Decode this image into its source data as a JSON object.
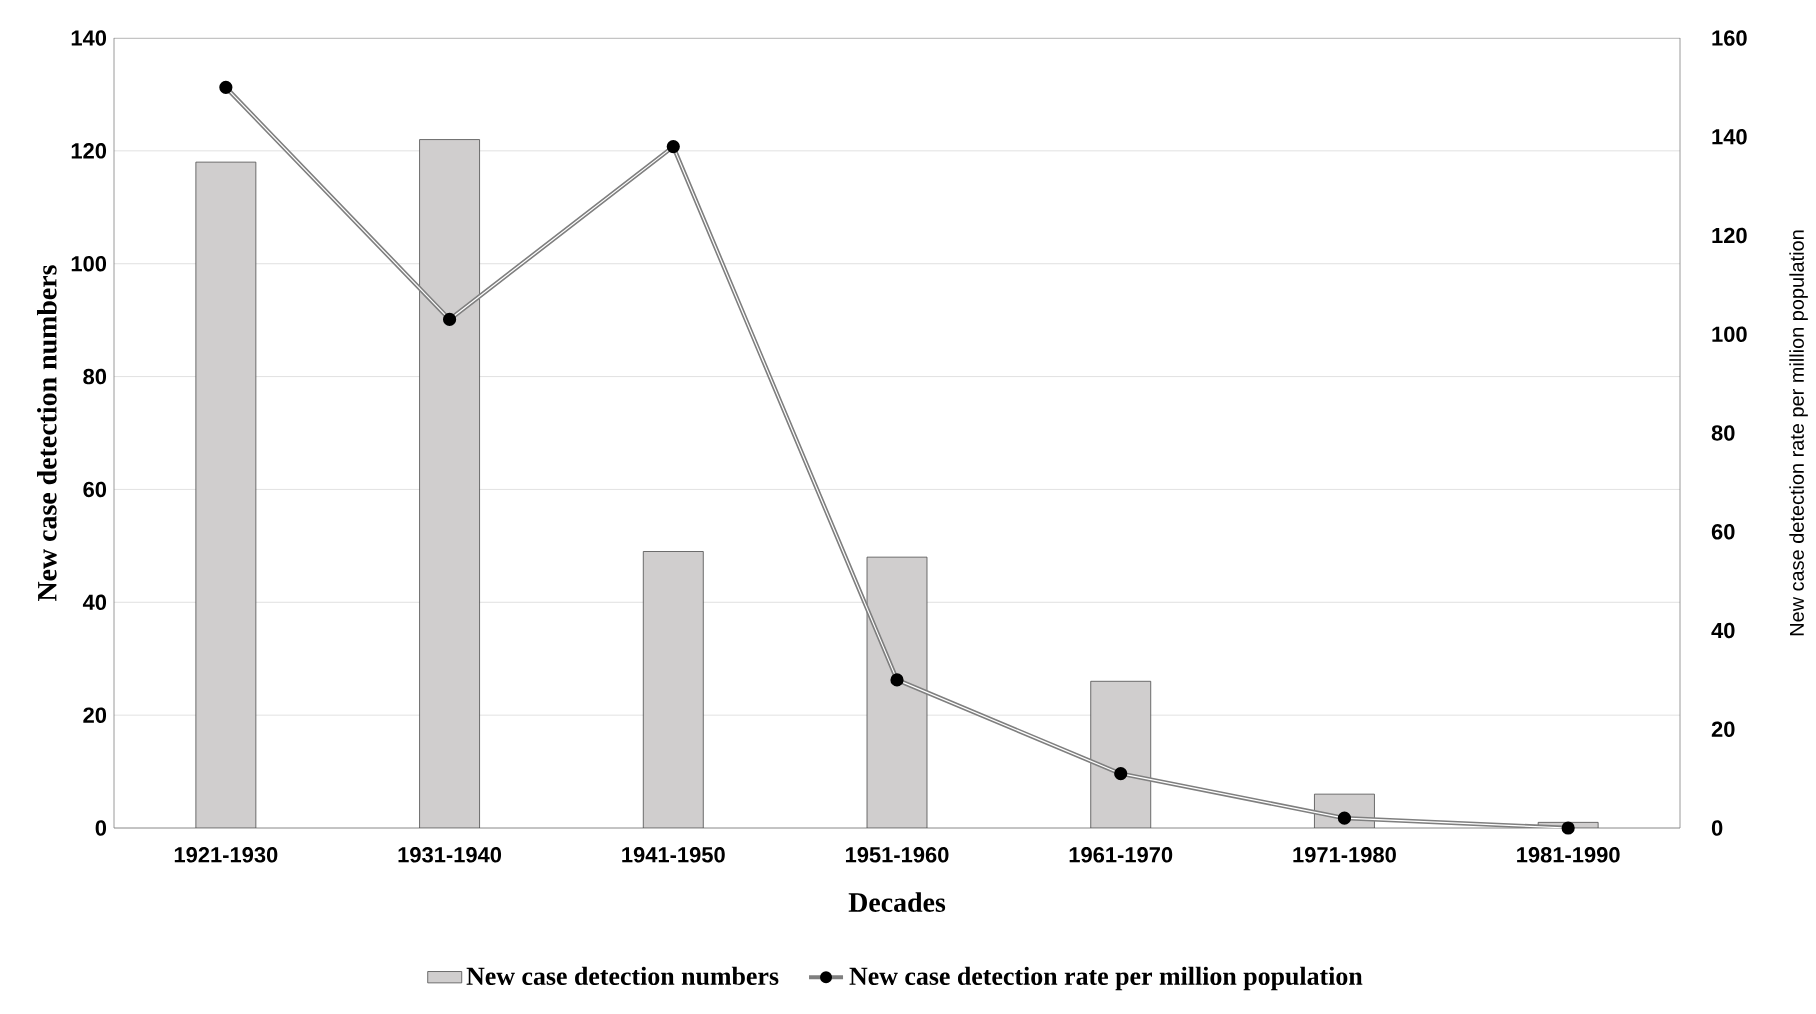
{
  "chart_data": {
    "type": "bar",
    "categories": [
      "1921-1930",
      "1931-1940",
      "1941-1950",
      "1951-1960",
      "1961-1970",
      "1971-1980",
      "1981-1990"
    ],
    "xlabel": "Decades",
    "ylabel": "New case detection numbers",
    "y2label": "New case detection rate per million population",
    "ylim": [
      0,
      140
    ],
    "yticks": [
      0,
      20,
      40,
      60,
      80,
      100,
      120,
      140
    ],
    "y2lim": [
      0,
      160
    ],
    "y2ticks": [
      0,
      20,
      40,
      60,
      80,
      100,
      120,
      140,
      160
    ],
    "grid": "y",
    "legend": "bottom",
    "series": [
      {
        "name": "New case detection numbers",
        "color": "#d0cece",
        "values": [
          118,
          122,
          49,
          48,
          26,
          6,
          1
        ]
      },
      {
        "name": "New case detection rate per million population",
        "type": "line",
        "axis": "y2",
        "marker": "circle",
        "color": "#7f7f7f",
        "values": [
          150,
          103,
          138,
          30,
          11,
          2,
          0
        ]
      }
    ]
  }
}
